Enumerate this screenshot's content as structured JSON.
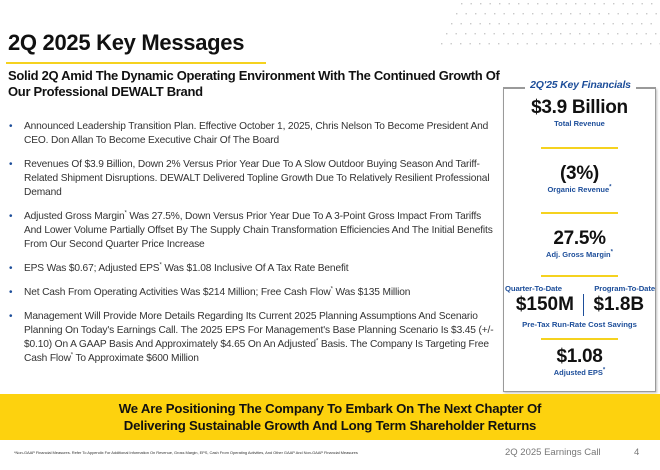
{
  "slide": {
    "title": "2Q 2025 Key Messages",
    "subtitle": "Solid 2Q Amid The Dynamic Operating Environment With The Continued Growth Of Our Professional DEWALT Brand",
    "accent_color": "#fdd20e",
    "brand_blue": "#1d4e9a"
  },
  "bullets": [
    {
      "text": "Announced Leadership Transition Plan. Effective October 1, 2025, Chris Nelson To Become President And CEO. Don Allan To Become Executive Chair Of The Board"
    },
    {
      "text": "Revenues Of $3.9 Billion, Down 2% Versus Prior Year Due To A Slow Outdoor Buying Season And Tariff-Related Shipment Disruptions. DEWALT Delivered Topline Growth Due To Relatively Resilient Professional Demand"
    },
    {
      "pre": "Adjusted Gross Margin",
      "sup": "*",
      "post": " Was 27.5%, Down Versus Prior Year Due To A 3-Point Gross Impact From Tariffs And Lower Volume Partially Offset By The Supply Chain Transformation Efficiencies And The Initial Benefits From Our Second Quarter Price Increase"
    },
    {
      "pre": "EPS Was $0.67; Adjusted EPS",
      "sup": "*",
      "post": " Was $1.08 Inclusive Of A Tax Rate Benefit"
    },
    {
      "pre": "Net Cash From Operating Activities Was $214 Million; Free Cash Flow",
      "sup": "*",
      "post": " Was $135 Million"
    },
    {
      "pre": "Management Will Provide More Details Regarding Its Current 2025 Planning Assumptions And Scenario Planning On Today's Earnings Call.  The 2025 EPS For Management's Base Planning Scenario Is $3.45 (+/- $0.10) On A GAAP Basis And Approximately $4.65 On An Adjusted",
      "sup": "*",
      "mid": " Basis. The Company Is Targeting Free Cash Flow",
      "sup2": "*",
      "post": " To Approximate $600 Million"
    }
  ],
  "key_financials": {
    "heading": "2Q'25 Key Financials",
    "total_revenue": {
      "value": "$3.9 Billion",
      "label": "Total Revenue"
    },
    "organic_revenue": {
      "value": "(3%)",
      "label": "Organic Revenue",
      "sup": "*"
    },
    "adj_gross_margin": {
      "value": "27.5%",
      "label": "Adj. Gross Margin",
      "sup": "*"
    },
    "cost_savings": {
      "quarter_label": "Quarter-To-Date",
      "program_label": "Program-To-Date",
      "quarter_value": "$150M",
      "program_value": "$1.8B",
      "label": "Pre-Tax Run-Rate Cost Savings"
    },
    "adjusted_eps": {
      "value": "$1.08",
      "label": "Adjusted EPS",
      "sup": "*"
    }
  },
  "banner": {
    "line1": "We Are Positioning The Company To Embark On The Next Chapter Of",
    "line2": "Delivering Sustainable Growth And Long Term Shareholder Returns"
  },
  "footer": {
    "footnote": "*Non-GAAP Financial Measures. Refer To Appendix For Additional Information On Revenue, Gross Margin, EPS, Cash From Operating Activities, And Other GAAP And Non-GAAP Financial Measures",
    "event": "2Q 2025 Earnings Call",
    "page_number": "4"
  }
}
